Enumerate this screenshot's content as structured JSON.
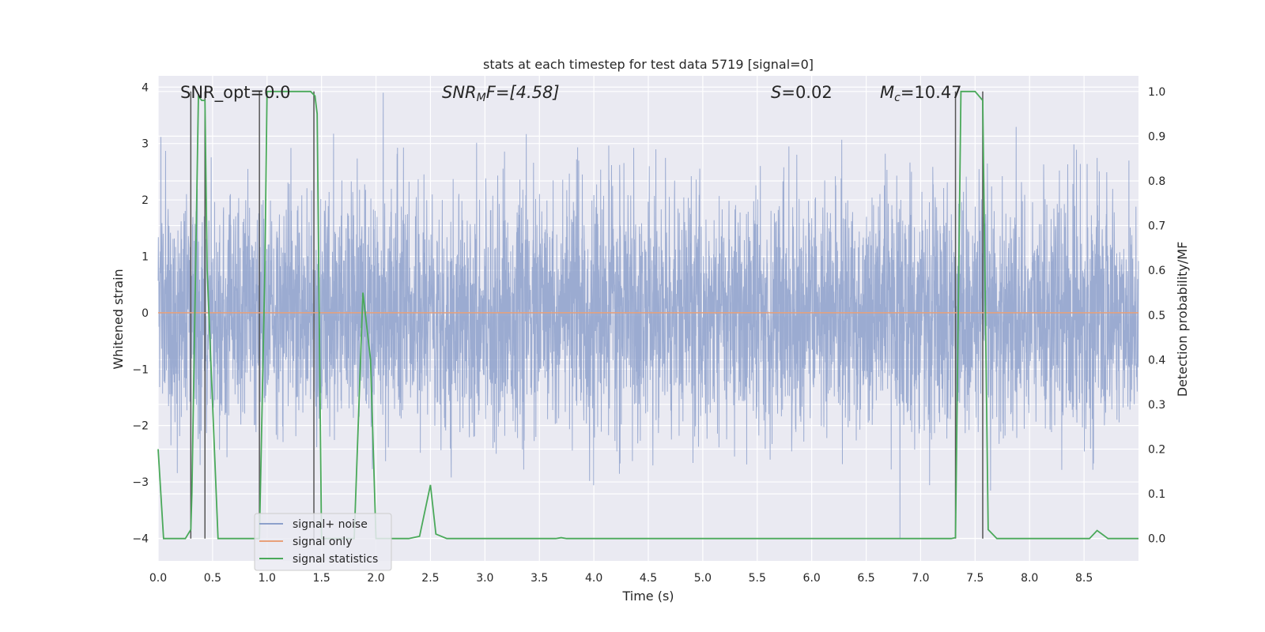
{
  "chart_data": {
    "type": "line",
    "title": "stats at each timestep for test data 5719 [signal=0]",
    "xlabel": "Time (s)",
    "ylabel_left": "Whitened strain",
    "ylabel_right": "Detection probability/MF",
    "xlim": [
      0.0,
      9.0
    ],
    "ylim_left": [
      -4.4,
      4.2
    ],
    "ylim_right": [
      -0.05,
      1.035
    ],
    "x_ticks": [
      "0.0",
      "0.5",
      "1.0",
      "1.5",
      "2.0",
      "2.5",
      "3.0",
      "3.5",
      "4.0",
      "4.5",
      "5.0",
      "5.5",
      "6.0",
      "6.5",
      "7.0",
      "7.5",
      "8.0",
      "8.5"
    ],
    "y_ticks_left": [
      "4",
      "3",
      "2",
      "1",
      "0",
      "−1",
      "−2",
      "−3",
      "−4"
    ],
    "y_ticks_right": [
      "1.0",
      "0.9",
      "0.8",
      "0.7",
      "0.6",
      "0.5",
      "0.4",
      "0.3",
      "0.2",
      "0.1",
      "0.0"
    ],
    "annotations": {
      "snr_opt": "SNR_opt=0.0",
      "snr_mf_base": "SNR",
      "snr_mf_sub": "M",
      "snr_mf_rest": "F=[4.58]",
      "s_label": "S",
      "s_value": "=0.02",
      "mc_base": "M",
      "mc_sub": "c",
      "mc_value": "=10.47"
    },
    "legend": {
      "position": "lower-left",
      "entries": [
        {
          "label": "signal+ noise",
          "color": "#8da0cb"
        },
        {
          "label": "signal only",
          "color": "#e8a07a"
        },
        {
          "label": "signal statistics",
          "color": "#4aa95a"
        }
      ]
    },
    "series": [
      {
        "name": "signal+ noise",
        "axis": "left",
        "color": "#8da0cb",
        "description": "whitened noise, roughly normal, amplitude ~±2.5 with peaks to ±4",
        "envelope": [
          -4.0,
          3.9
        ]
      },
      {
        "name": "signal only",
        "axis": "left",
        "color": "#e8a07a",
        "x": [
          0.0,
          9.0
        ],
        "y": [
          0.0,
          0.0
        ]
      },
      {
        "name": "signal statistics",
        "axis": "right",
        "color": "#4aa95a",
        "x": [
          0.0,
          0.05,
          0.25,
          0.3,
          0.31,
          0.37,
          0.4,
          0.43,
          0.45,
          0.55,
          0.8,
          0.93,
          0.98,
          1.0,
          1.1,
          1.4,
          1.44,
          1.46,
          1.5,
          1.55,
          1.65,
          1.7,
          1.8,
          1.88,
          1.95,
          2.0,
          2.1,
          2.2,
          2.3,
          2.4,
          2.5,
          2.55,
          2.65,
          3.0,
          3.5,
          3.65,
          3.7,
          3.75,
          4.0,
          5.0,
          6.0,
          7.0,
          7.28,
          7.32,
          7.37,
          7.4,
          7.5,
          7.57,
          7.62,
          7.7,
          8.0,
          8.55,
          8.62,
          8.72,
          9.0
        ],
        "y": [
          0.2,
          0.0,
          0.0,
          0.02,
          0.1,
          0.99,
          0.98,
          0.98,
          0.6,
          0.0,
          0.0,
          0.0,
          0.6,
          1.0,
          1.0,
          1.0,
          0.99,
          0.95,
          0.0,
          0.0,
          0.0,
          0.0,
          0.0,
          0.55,
          0.4,
          0.0,
          0.0,
          0.0,
          0.0,
          0.005,
          0.12,
          0.01,
          0.0,
          0.0,
          0.0,
          0.0,
          0.002,
          0.0,
          0.0,
          0.0,
          0.0,
          0.0,
          0.0,
          0.002,
          1.0,
          1.0,
          1.0,
          0.98,
          0.02,
          0.0,
          0.0,
          0.0,
          0.018,
          0.0,
          0.0
        ]
      }
    ],
    "vertical_markers": [
      0.3,
      0.43,
      0.93,
      1.43,
      7.32,
      7.57
    ]
  }
}
